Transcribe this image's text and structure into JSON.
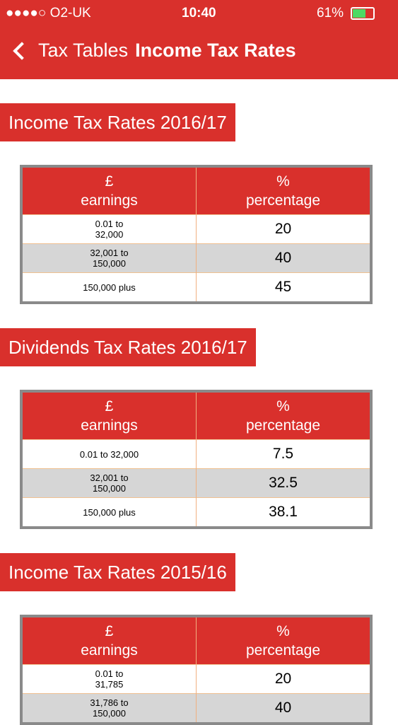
{
  "status_bar": {
    "carrier": "●●●●○ O2-UK",
    "time": "10:40",
    "battery": "61%"
  },
  "nav": {
    "back": "Tax Tables",
    "title": "Income Tax Rates"
  },
  "sections": [
    {
      "title": "Income Tax Rates 2016/17",
      "table": {
        "header": [
          {
            "symbol": "£",
            "label": "earnings"
          },
          {
            "symbol": "%",
            "label": "percentage"
          }
        ],
        "rows": [
          [
            "0.01 to\n32,000",
            20
          ],
          [
            "32,001 to\n150,000",
            40
          ],
          [
            "150,000 plus",
            45
          ]
        ]
      }
    },
    {
      "title": "Dividends Tax Rates 2016/17",
      "table": {
        "header": [
          {
            "symbol": "£",
            "label": "earnings"
          },
          {
            "symbol": "%",
            "label": "percentage"
          }
        ],
        "rows": [
          [
            "0.01 to 32,000",
            7.5
          ],
          [
            "32,001 to\n150,000",
            32.5
          ],
          [
            "150,000 plus",
            38.1
          ]
        ]
      }
    },
    {
      "title": "Income Tax Rates 2015/16",
      "table": {
        "header": [
          {
            "symbol": "£",
            "label": "earnings"
          },
          {
            "symbol": "%",
            "label": "percentage"
          }
        ],
        "rows": [
          [
            "0.01 to\n31,785",
            20
          ],
          [
            "31,786 to\n150,000",
            40
          ]
        ]
      }
    }
  ]
}
